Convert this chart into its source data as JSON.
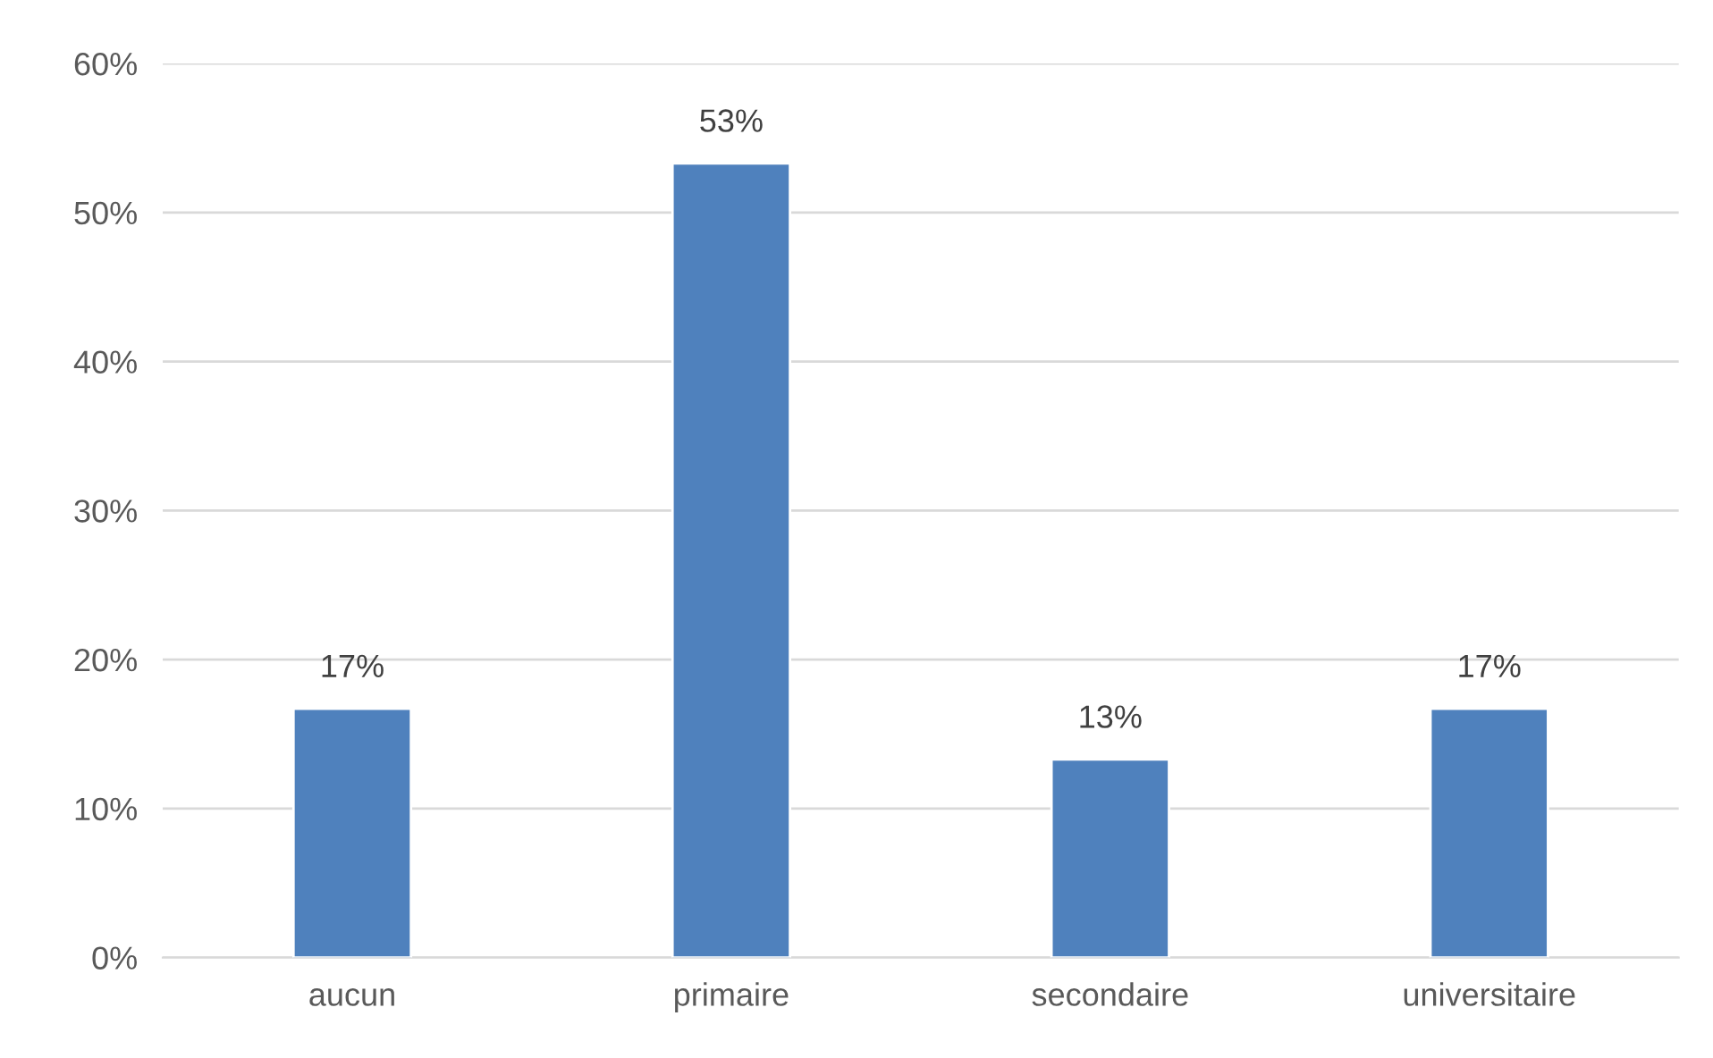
{
  "chart_data": {
    "type": "bar",
    "categories": [
      "aucun",
      "primaire",
      "secondaire",
      "universitaire"
    ],
    "values": [
      16.7,
      53.3,
      13.3,
      16.7
    ],
    "value_labels": [
      "17%",
      "53%",
      "13%",
      "17%"
    ],
    "color": "#4f81bd",
    "ylim": [
      0,
      60
    ],
    "yticks": [
      {
        "value": 0,
        "label": "0%"
      },
      {
        "value": 10,
        "label": "10%"
      },
      {
        "value": 20,
        "label": "20%"
      },
      {
        "value": 30,
        "label": "30%"
      },
      {
        "value": 40,
        "label": "40%"
      },
      {
        "value": 50,
        "label": "50%"
      },
      {
        "value": 60,
        "label": "60%"
      }
    ],
    "grid": "y"
  }
}
